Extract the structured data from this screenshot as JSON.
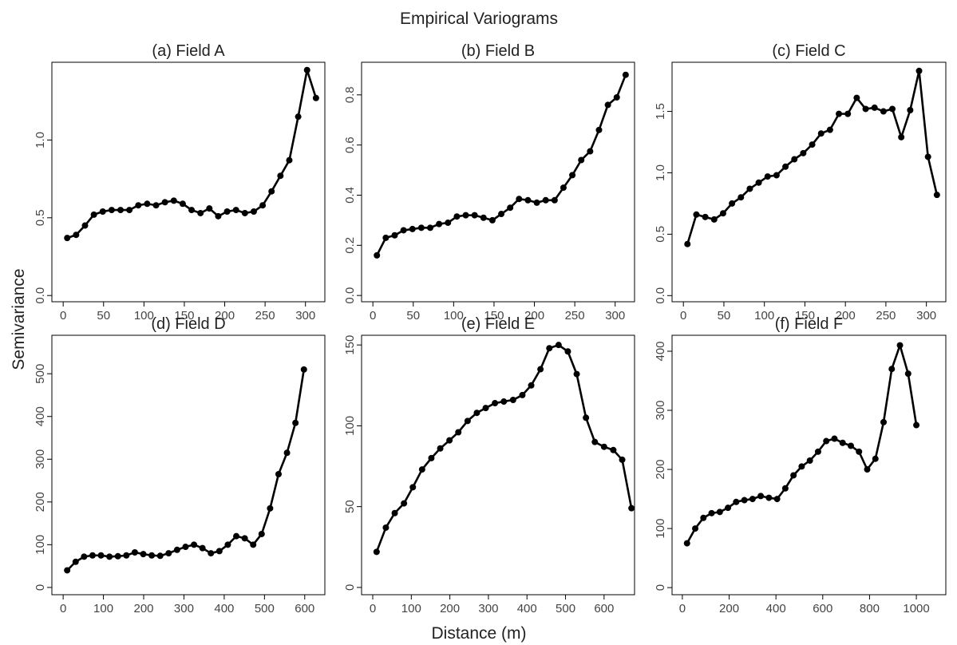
{
  "title": "Empirical Variograms",
  "x_label": "Distance (m)",
  "y_label": "Semivariance",
  "chart_data": [
    {
      "type": "line",
      "title": "(a) Field A",
      "color": "#000000",
      "x": [
        5,
        16,
        27,
        38,
        49,
        60,
        71,
        82,
        93,
        104,
        115,
        126,
        137,
        148,
        159,
        170,
        181,
        192,
        203,
        214,
        225,
        236,
        247,
        258,
        269,
        280,
        291,
        302,
        313
      ],
      "values": [
        0.37,
        0.39,
        0.45,
        0.52,
        0.54,
        0.55,
        0.55,
        0.55,
        0.58,
        0.59,
        0.58,
        0.6,
        0.61,
        0.59,
        0.55,
        0.53,
        0.56,
        0.51,
        0.54,
        0.55,
        0.53,
        0.54,
        0.58,
        0.67,
        0.77,
        0.87,
        1.15,
        1.45,
        1.27
      ],
      "xlim": [
        -14,
        324
      ],
      "ylim": [
        -0.04,
        1.5
      ],
      "xticks": [
        0,
        50,
        100,
        150,
        200,
        250,
        300
      ],
      "yticks": [
        {
          "value": 0,
          "label": "0.0"
        },
        0.5,
        {
          "value": 1,
          "label": "1.0"
        }
      ]
    },
    {
      "type": "line",
      "title": "(b) Field B",
      "color": "#000000",
      "x": [
        5,
        16,
        27,
        38,
        49,
        60,
        71,
        82,
        93,
        104,
        115,
        126,
        137,
        148,
        159,
        170,
        181,
        192,
        203,
        214,
        225,
        236,
        247,
        258,
        269,
        280,
        291,
        302,
        313
      ],
      "values": [
        0.16,
        0.23,
        0.24,
        0.26,
        0.265,
        0.27,
        0.27,
        0.285,
        0.29,
        0.315,
        0.32,
        0.32,
        0.31,
        0.3,
        0.325,
        0.35,
        0.385,
        0.38,
        0.37,
        0.38,
        0.38,
        0.43,
        0.48,
        0.54,
        0.575,
        0.66,
        0.76,
        0.79,
        0.88
      ],
      "xlim": [
        -14,
        324
      ],
      "ylim": [
        -0.025,
        0.93
      ],
      "xticks": [
        0,
        50,
        100,
        150,
        200,
        250,
        300
      ],
      "yticks": [
        {
          "value": 0,
          "label": "0.0"
        },
        0.2,
        0.4,
        0.6,
        0.8
      ]
    },
    {
      "type": "line",
      "title": "(c) Field C",
      "color": "#000000",
      "x": [
        5,
        16,
        27,
        38,
        49,
        60,
        71,
        82,
        93,
        104,
        115,
        126,
        137,
        148,
        159,
        170,
        181,
        192,
        203,
        214,
        225,
        236,
        247,
        258,
        269,
        280,
        291,
        302,
        313
      ],
      "values": [
        0.42,
        0.66,
        0.64,
        0.62,
        0.67,
        0.75,
        0.8,
        0.87,
        0.92,
        0.97,
        0.98,
        1.05,
        1.11,
        1.16,
        1.23,
        1.32,
        1.35,
        1.48,
        1.48,
        1.61,
        1.52,
        1.53,
        1.5,
        1.52,
        1.29,
        1.51,
        1.83,
        1.13,
        0.82
      ],
      "xlim": [
        -14,
        324
      ],
      "ylim": [
        -0.05,
        1.9
      ],
      "xticks": [
        0,
        50,
        100,
        150,
        200,
        250,
        300
      ],
      "yticks": [
        {
          "value": 0,
          "label": "0.0"
        },
        0.5,
        {
          "value": 1,
          "label": "1.0"
        },
        1.5
      ]
    },
    {
      "type": "line",
      "title": "(d) Field D",
      "color": "#000000",
      "x": [
        10,
        31,
        52,
        73,
        94,
        115,
        136,
        157,
        178,
        199,
        220,
        241,
        262,
        283,
        304,
        325,
        346,
        367,
        388,
        409,
        430,
        451,
        472,
        493,
        514,
        535,
        556,
        577,
        598
      ],
      "values": [
        40,
        60,
        72,
        75,
        75,
        72,
        73,
        75,
        82,
        78,
        75,
        74,
        80,
        88,
        95,
        100,
        92,
        80,
        85,
        100,
        120,
        115,
        100,
        125,
        185,
        265,
        315,
        385,
        510
      ],
      "xlim": [
        -28,
        650
      ],
      "ylim": [
        -17,
        590
      ],
      "xticks": [
        0,
        100,
        200,
        300,
        400,
        500,
        600
      ],
      "yticks": [
        0,
        100,
        200,
        300,
        400,
        500
      ]
    },
    {
      "type": "line",
      "title": "(e) Field E",
      "color": "#000000",
      "x": [
        10,
        34,
        57,
        81,
        104,
        128,
        152,
        175,
        199,
        222,
        246,
        270,
        293,
        317,
        340,
        364,
        388,
        411,
        435,
        458,
        482,
        506,
        529,
        553,
        576,
        600,
        624,
        647,
        671
      ],
      "values": [
        22,
        37,
        46,
        52,
        62,
        73,
        80,
        86,
        91,
        96,
        103,
        108,
        111,
        114,
        115,
        116,
        119,
        125,
        135,
        148,
        150,
        146,
        132,
        105,
        90,
        87,
        85,
        79,
        49
      ],
      "xlim": [
        -29,
        679
      ],
      "ylim": [
        -4.5,
        156
      ],
      "xticks": [
        0,
        100,
        200,
        300,
        400,
        500,
        600
      ],
      "yticks": [
        0,
        50,
        100,
        150
      ]
    },
    {
      "type": "line",
      "title": "(f) Field F",
      "color": "#000000",
      "x": [
        20,
        55,
        90,
        125,
        160,
        195,
        230,
        265,
        300,
        335,
        370,
        405,
        440,
        475,
        510,
        545,
        580,
        615,
        650,
        685,
        720,
        755,
        790,
        825,
        860,
        895,
        930,
        965,
        1000
      ],
      "values": [
        75,
        100,
        118,
        126,
        128,
        135,
        145,
        148,
        150,
        155,
        152,
        150,
        168,
        190,
        205,
        215,
        230,
        248,
        252,
        245,
        240,
        230,
        200,
        218,
        280,
        370,
        410,
        362,
        275
      ],
      "xlim": [
        -44,
        1126
      ],
      "ylim": [
        -12,
        427
      ],
      "xticks": [
        0,
        200,
        400,
        600,
        800,
        1000
      ],
      "yticks": [
        0,
        100,
        200,
        300,
        400
      ]
    }
  ]
}
